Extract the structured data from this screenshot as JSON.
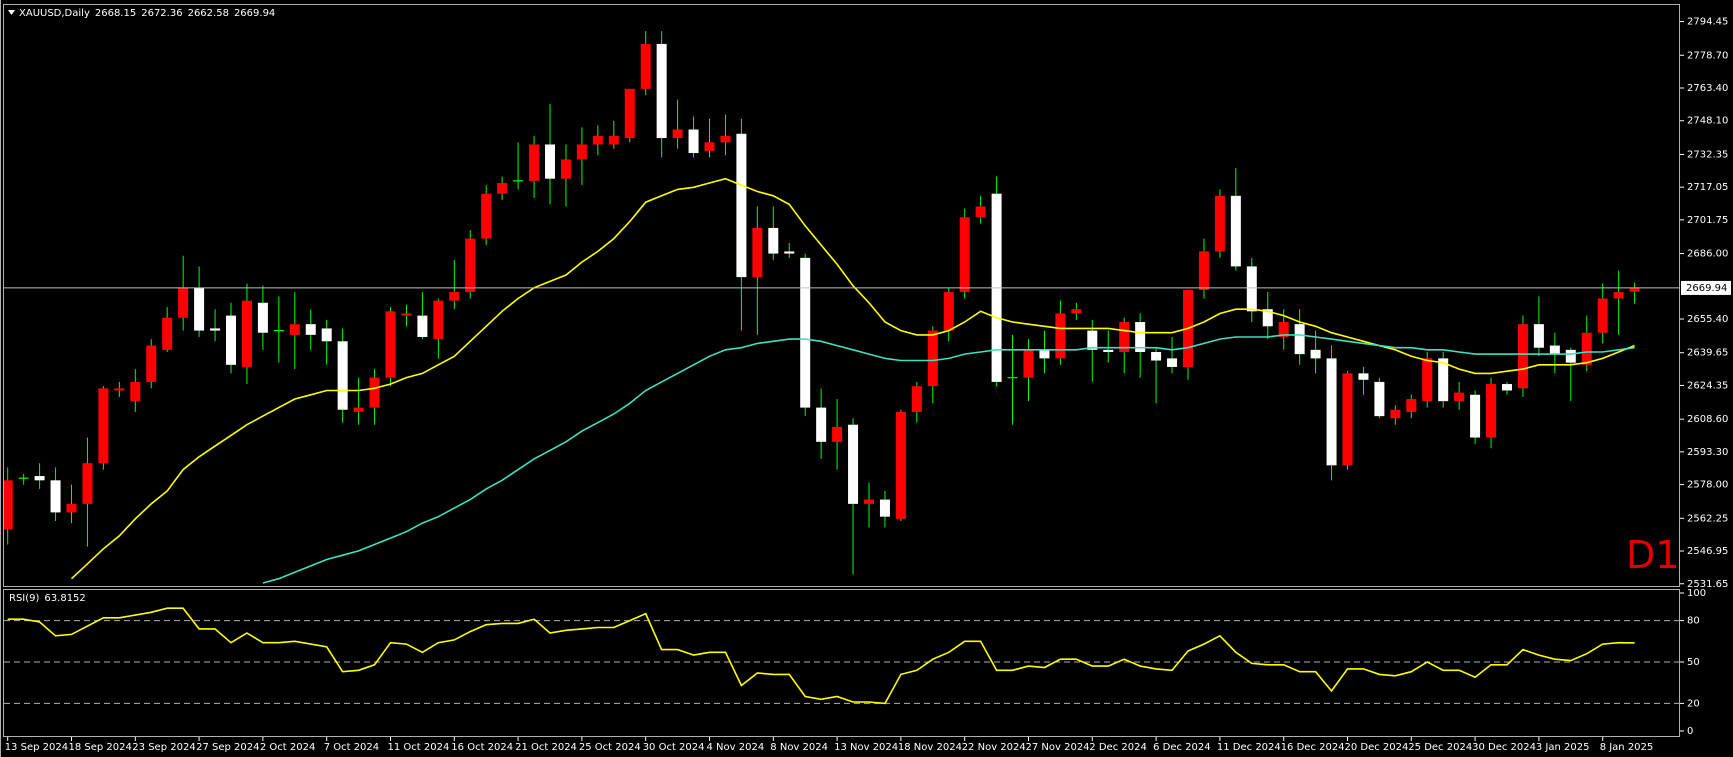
{
  "chart_data": [
    {
      "type": "candlestick",
      "title": "XAUUSD,Daily",
      "categories": [
        "13 Sep 2024",
        null,
        null,
        null,
        "18 Sep 2024",
        null,
        null,
        null,
        "23 Sep 2024",
        null,
        null,
        null,
        "27 Sep 2024",
        null,
        null,
        null,
        "2 Oct 2024",
        null,
        null,
        null,
        "7 Oct 2024",
        null,
        null,
        null,
        "11 Oct 2024",
        null,
        null,
        null,
        "16 Oct 2024",
        null,
        null,
        null,
        "21 Oct 2024",
        null,
        null,
        null,
        "25 Oct 2024",
        null,
        null,
        null,
        "30 Oct 2024",
        null,
        null,
        null,
        "4 Nov 2024",
        null,
        null,
        null,
        "8 Nov 2024",
        null,
        null,
        null,
        "13 Nov 2024",
        null,
        null,
        null,
        "18 Nov 2024",
        null,
        null,
        null,
        "22 Nov 2024",
        null,
        null,
        null,
        "27 Nov 2024",
        null,
        null,
        null,
        "2 Dec 2024",
        null,
        null,
        null,
        "6 Dec 2024",
        null,
        null,
        null,
        "11 Dec 2024",
        null,
        null,
        null,
        "16 Dec 2024",
        null,
        null,
        null,
        "20 Dec 2024",
        null,
        null,
        null,
        "25 Dec 2024",
        null,
        null,
        null,
        "30 Dec 2024",
        null,
        null,
        null,
        "3 Jan 2025",
        null,
        null,
        null,
        "8 Jan 2025",
        null,
        null
      ],
      "open": [
        2557,
        2581,
        2582,
        2580,
        2565,
        2569,
        2588,
        2622,
        2617,
        2626,
        2641,
        2656,
        2670,
        2651,
        2657,
        2633,
        2663,
        2650,
        2648,
        2653,
        2651,
        2645,
        2612,
        2614,
        2628,
        2657,
        2657,
        2646,
        2664,
        2668,
        2693,
        2714,
        2720,
        2720,
        2737,
        2721,
        2730,
        2737,
        2737,
        2740,
        2763,
        2784,
        2740,
        2744,
        2734,
        2738,
        2742,
        2675,
        2698,
        2687,
        2684,
        2614,
        2598,
        2606,
        2569,
        2571,
        2562,
        2612,
        2624,
        2650,
        2668,
        2703,
        2714,
        2628,
        2628,
        2641,
        2637,
        2658,
        2650,
        2641,
        2640,
        2654,
        2640,
        2637,
        2633,
        2669,
        2687,
        2713,
        2680,
        2660,
        2647,
        2653,
        2641,
        2637,
        2587,
        2630,
        2626,
        2609,
        2612,
        2617,
        2637,
        2617,
        2620,
        2600,
        2625,
        2623,
        2653,
        2643,
        2641,
        2634,
        2649,
        2665,
        2668.15
      ],
      "high": [
        2586,
        2583,
        2588,
        2586,
        2578,
        2600,
        2624,
        2626,
        2632,
        2646,
        2661,
        2685,
        2680,
        2660,
        2663,
        2672,
        2671,
        2666,
        2668,
        2660,
        2655,
        2651,
        2628,
        2632,
        2661,
        2662,
        2668,
        2665,
        2683,
        2697,
        2718,
        2722,
        2738,
        2741,
        2756,
        2737,
        2745,
        2746,
        2748,
        2763,
        2790,
        2790,
        2758,
        2750,
        2749,
        2751,
        2749,
        2708,
        2708,
        2691,
        2686,
        2623,
        2618,
        2609,
        2579,
        2575,
        2613,
        2626,
        2652,
        2670,
        2707,
        2713,
        2722,
        2648,
        2646,
        2650,
        2664,
        2663,
        2655,
        2650,
        2656,
        2658,
        2642,
        2647,
        2669,
        2693,
        2716,
        2726,
        2684,
        2668,
        2660,
        2660,
        2650,
        2643,
        2631,
        2633,
        2628,
        2615,
        2620,
        2640,
        2640,
        2626,
        2622,
        2628,
        2626,
        2657,
        2666,
        2649,
        2642,
        2657,
        2672,
        2678,
        2672.36
      ],
      "low": [
        2550,
        2578,
        2576,
        2561,
        2560,
        2549,
        2585,
        2619,
        2612,
        2623,
        2640,
        2650,
        2647,
        2645,
        2630,
        2625,
        2641,
        2635,
        2632,
        2641,
        2634,
        2607,
        2606,
        2606,
        2624,
        2652,
        2646,
        2637,
        2660,
        2665,
        2690,
        2711,
        2716,
        2712,
        2709,
        2708,
        2718,
        2732,
        2735,
        2738,
        2760,
        2731,
        2735,
        2731,
        2731,
        2732,
        2650,
        2648,
        2683,
        2684,
        2610,
        2590,
        2585,
        2536,
        2558,
        2558,
        2561,
        2607,
        2616,
        2645,
        2665,
        2700,
        2624,
        2606,
        2617,
        2630,
        2634,
        2655,
        2626,
        2635,
        2630,
        2628,
        2616,
        2630,
        2627,
        2665,
        2684,
        2678,
        2654,
        2646,
        2641,
        2634,
        2630,
        2580,
        2585,
        2620,
        2609,
        2606,
        2609,
        2614,
        2614,
        2613,
        2597,
        2595,
        2620,
        2619,
        2638,
        2630,
        2617,
        2631,
        2644,
        2648,
        2662.58
      ],
      "close": [
        2580,
        2581,
        2580,
        2565,
        2569,
        2588,
        2623,
        2623,
        2626,
        2643,
        2656,
        2670,
        2650,
        2650,
        2634,
        2664,
        2649,
        2650,
        2653,
        2648,
        2645,
        2613,
        2614,
        2628,
        2659,
        2658,
        2647,
        2664,
        2668,
        2693,
        2714,
        2719,
        2720,
        2737,
        2721,
        2730,
        2737,
        2741,
        2741,
        2763,
        2784,
        2740,
        2744,
        2733,
        2738,
        2741,
        2675,
        2698,
        2686,
        2686,
        2614,
        2598,
        2605,
        2569,
        2571,
        2563,
        2612,
        2624,
        2650,
        2668,
        2703,
        2708,
        2626,
        2628,
        2641,
        2637,
        2658,
        2660,
        2641,
        2640,
        2654,
        2640,
        2636,
        2633,
        2669,
        2687,
        2713,
        2680,
        2659,
        2652,
        2654,
        2639,
        2637,
        2587,
        2630,
        2627,
        2610,
        2613,
        2618,
        2637,
        2617,
        2621,
        2600,
        2625,
        2622,
        2653,
        2642,
        2639,
        2635,
        2649,
        2665,
        2668,
        2669.94
      ],
      "overlays": [
        {
          "color": "#ffff00",
          "values": [
            null,
            null,
            null,
            null,
            2534,
            2541,
            2548,
            2554,
            2562,
            2569,
            2575,
            2585,
            2591,
            2596,
            2601,
            2606,
            2610,
            2614,
            2618,
            2620,
            2622,
            2622,
            2622,
            2623,
            2625,
            2628,
            2630,
            2634,
            2638,
            2645,
            2652,
            2659,
            2665,
            2670,
            2673,
            2676,
            2682,
            2687,
            2693,
            2701,
            2710,
            2713,
            2716,
            2717,
            2719,
            2721,
            2718,
            2715,
            2713,
            2709,
            2699,
            2690,
            2681,
            2671,
            2663,
            2654,
            2650,
            2648,
            2648,
            2650,
            2654,
            2659,
            2656,
            2654,
            2653,
            2652,
            2651,
            2651,
            2651,
            2651,
            2650,
            2649,
            2649,
            2649,
            2651,
            2654,
            2658,
            2660,
            2660,
            2659,
            2657,
            2654,
            2652,
            2649,
            2647,
            2645,
            2643,
            2641,
            2638,
            2636,
            2635,
            2632,
            2630,
            2630,
            2631,
            2632,
            2634,
            2634,
            2634,
            2635,
            2637,
            2640,
            2643
          ]
        },
        {
          "color": "#40e0c0",
          "values": [
            null,
            null,
            null,
            null,
            null,
            null,
            null,
            null,
            null,
            null,
            null,
            null,
            null,
            null,
            null,
            null,
            2532,
            2534,
            2537,
            2540,
            2543,
            2545,
            2547,
            2550,
            2553,
            2556,
            2560,
            2563,
            2567,
            2571,
            2576,
            2580,
            2585,
            2590,
            2594,
            2598,
            2603,
            2607,
            2611,
            2616,
            2622,
            2626,
            2630,
            2634,
            2638,
            2641,
            2642,
            2644,
            2645,
            2646,
            2646,
            2645,
            2643,
            2641,
            2639,
            2637,
            2636,
            2636,
            2636,
            2637,
            2639,
            2640,
            2641,
            2641,
            2641,
            2641,
            2641,
            2641,
            2642,
            2642,
            2642,
            2642,
            2642,
            2641,
            2642,
            2644,
            2646,
            2647,
            2647,
            2647,
            2648,
            2648,
            2647,
            2646,
            2645,
            2644,
            2643,
            2642,
            2642,
            2641,
            2641,
            2640,
            2639,
            2639,
            2639,
            2639,
            2639,
            2639,
            2639,
            2640,
            2640,
            2641,
            2642
          ]
        }
      ],
      "ylim": [
        2530.6,
        2802.2
      ],
      "yticks": [
        2794.45,
        {
          "value": 2778.7,
          "label": "2778.70"
        },
        {
          "value": 2763.4,
          "label": "2763.40"
        },
        {
          "value": 2748.1,
          "label": "2748.10"
        },
        2732.35,
        2717.05,
        2701.75,
        {
          "value": 2686,
          "label": "2686.00"
        },
        {
          "value": 2655.4,
          "label": "2655.40"
        },
        2639.65,
        2624.35,
        {
          "value": 2608.6,
          "label": "2608.60"
        },
        {
          "value": 2593.3,
          "label": "2593.30"
        },
        {
          "value": 2578,
          "label": "2578.00"
        },
        2562.25,
        2546.95,
        2531.65
      ],
      "grid": false,
      "bull_color": "#ff0000",
      "bear_color": "#ffffff",
      "wick_color": "#00ff00",
      "price_line": true,
      "price_line_color": "#c0c0c0",
      "annotation": "D1"
    },
    {
      "type": "line",
      "title": "RSI(9)",
      "series": [
        {
          "color": "#ffff00",
          "values": [
            81,
            81,
            79,
            69,
            70,
            76,
            82,
            82,
            84,
            86,
            89,
            89,
            74,
            74,
            64,
            71,
            64,
            64,
            65,
            63,
            61,
            43,
            44,
            48,
            64,
            63,
            57,
            64,
            66,
            72,
            77,
            78,
            78,
            81,
            71,
            73,
            74,
            75,
            75,
            80,
            85,
            59,
            59,
            55,
            57,
            57,
            33,
            42,
            41,
            41,
            25,
            23,
            25,
            21,
            21,
            20,
            41,
            44,
            52,
            57,
            65,
            65,
            44,
            44,
            47,
            46,
            52,
            52,
            47,
            47,
            52,
            47,
            45,
            44,
            58,
            63,
            69,
            57,
            49,
            48,
            48,
            43,
            43,
            29,
            45,
            45,
            41,
            40,
            43,
            50,
            44,
            44,
            39,
            48,
            48,
            59,
            55,
            52,
            51,
            56,
            63,
            64,
            63.8152
          ]
        }
      ],
      "ylim": [
        0,
        100
      ],
      "yticks": [
        0,
        20,
        50,
        80,
        100
      ],
      "grid": true
    }
  ]
}
